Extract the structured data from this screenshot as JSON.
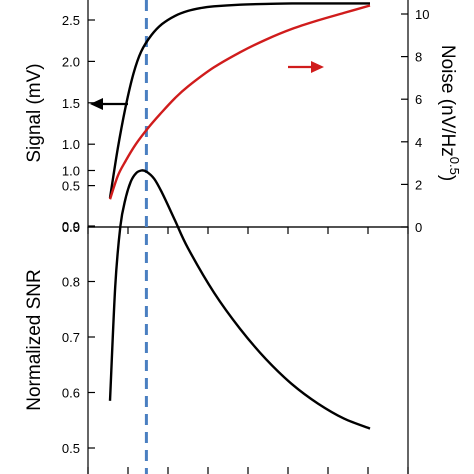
{
  "chart_data": [
    {
      "type": "line",
      "panel": "top",
      "xlabel": "",
      "ylabel": "Signal (mV)",
      "y2label_main": "Noise (nV/Hz",
      "y2label_sup": "0.5",
      "y2label_close": ")",
      "ylim": [
        0,
        2.8
      ],
      "y2lim": [
        0,
        10.5
      ],
      "yticks": [
        "0.0",
        "0.5",
        "1.0",
        "1.5",
        "2.0",
        "2.5"
      ],
      "y2ticks": [
        "0",
        "2",
        "4",
        "6",
        "8",
        "10"
      ],
      "series": [
        {
          "axis": "left",
          "color": "#000000",
          "x": [
            0.0,
            0.03,
            0.06,
            0.09,
            0.12,
            0.16,
            0.2,
            0.25,
            0.3,
            0.35,
            0.4,
            0.5,
            0.6,
            0.7,
            0.8,
            0.9,
            1.0
          ],
          "y": [
            0.35,
            0.95,
            1.45,
            1.85,
            2.12,
            2.32,
            2.45,
            2.55,
            2.61,
            2.645,
            2.665,
            2.685,
            2.695,
            2.7,
            2.7,
            2.7,
            2.7
          ]
        },
        {
          "axis": "right",
          "color": "#d01c1c",
          "x": [
            0.0,
            0.03,
            0.06,
            0.1,
            0.15,
            0.2,
            0.25,
            0.3,
            0.4,
            0.5,
            0.6,
            0.7,
            0.8,
            0.9,
            1.0
          ],
          "y": [
            1.3,
            2.4,
            3.1,
            3.9,
            4.7,
            5.4,
            6.05,
            6.6,
            7.5,
            8.2,
            8.8,
            9.3,
            9.7,
            10.05,
            10.4
          ]
        }
      ],
      "arrows": [
        {
          "direction": "left",
          "color": "#000000",
          "points_to": "left axis"
        },
        {
          "direction": "right",
          "color": "#d01c1c",
          "points_to": "right axis"
        }
      ],
      "marker_line": {
        "x": 0.14,
        "color": "#4a7fc1",
        "style": "dashed"
      }
    },
    {
      "type": "line",
      "panel": "bottom",
      "xlabel": "",
      "ylabel": "Normalized SNR",
      "ylim": [
        0.48,
        1.04
      ],
      "yticks": [
        "0.5",
        "0.6",
        "0.7",
        "0.8",
        "0.9",
        "1.0"
      ],
      "series": [
        {
          "axis": "left",
          "color": "#000000",
          "x": [
            0.0,
            0.02,
            0.04,
            0.06,
            0.08,
            0.1,
            0.12,
            0.14,
            0.17,
            0.2,
            0.25,
            0.3,
            0.4,
            0.5,
            0.6,
            0.7,
            0.8,
            0.9,
            1.0
          ],
          "y": [
            0.585,
            0.79,
            0.9,
            0.95,
            0.98,
            0.995,
            1.0,
            0.998,
            0.985,
            0.96,
            0.91,
            0.86,
            0.78,
            0.715,
            0.66,
            0.615,
            0.58,
            0.553,
            0.535
          ]
        }
      ],
      "marker_line": {
        "x": 0.14,
        "color": "#4a7fc1",
        "style": "dashed"
      }
    }
  ]
}
